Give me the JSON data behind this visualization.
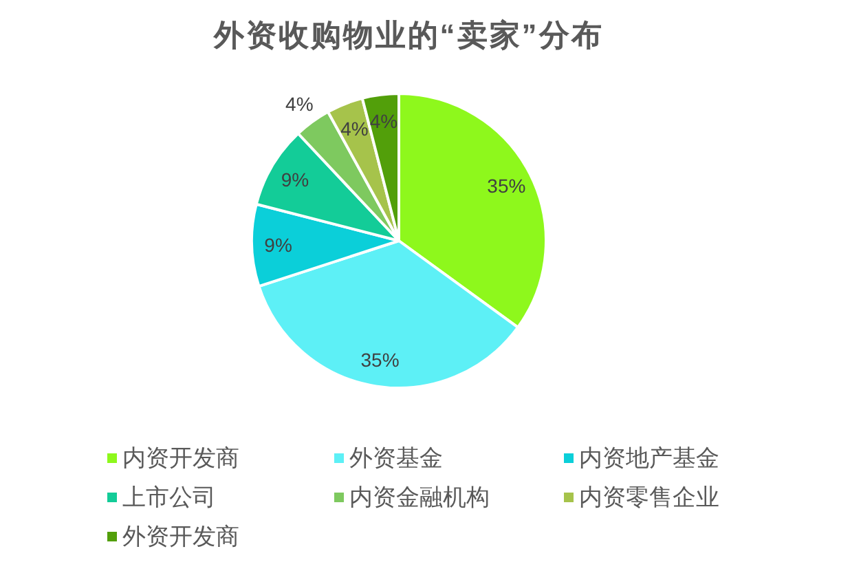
{
  "chart_data": {
    "type": "pie",
    "title": "外资收购物业的“卖家”分布",
    "categories": [
      "内资开发商",
      "外资基金",
      "内资地产基金",
      "上市公司",
      "内资金融机构",
      "内资零售企业",
      "外资开发商"
    ],
    "values": [
      35,
      35,
      9,
      9,
      4,
      4,
      4
    ],
    "colors": [
      "#8ef81c",
      "#5df0f6",
      "#0bcfd9",
      "#13cc98",
      "#7ec95f",
      "#a6c34b",
      "#529f0a"
    ],
    "value_labels": [
      "35%",
      "35%",
      "9%",
      "9%",
      "4%",
      "4%",
      "4%"
    ],
    "legend": "bottom"
  }
}
